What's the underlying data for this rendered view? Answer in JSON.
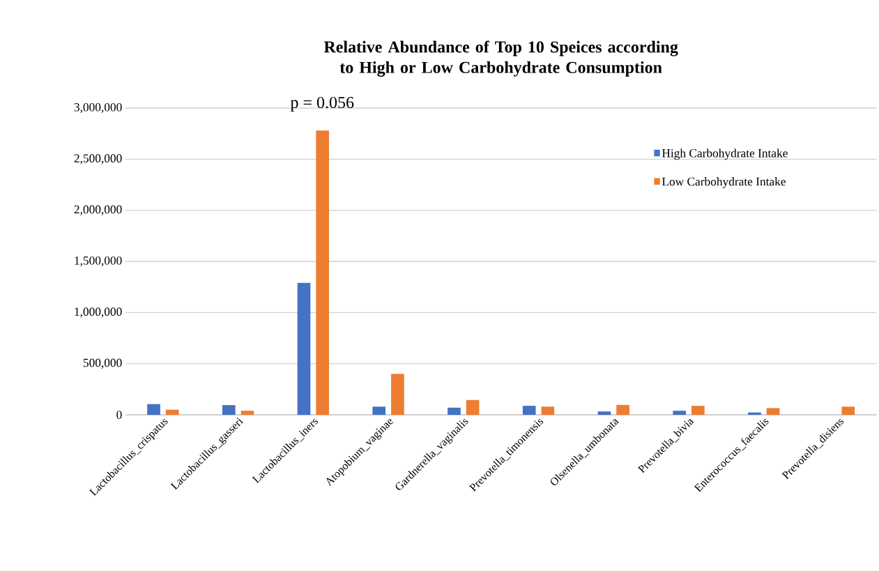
{
  "chart_data": {
    "type": "bar",
    "title": "Relative Abundance of Top 10 Speices according to High or Low Carbohydrate Consumption",
    "categories": [
      "Lactobacillus_crispatus",
      "Lactobacillus_gasseri",
      "Lactobacillus_iners",
      "Atopobium_vaginae",
      "Gardnerella_vaginalis",
      "Prevotella_timonensis",
      "Olsenella_umbonata",
      "Prevotella_bivia",
      "Enterococcus_faecalis",
      "Prevotella_disiens"
    ],
    "series": [
      {
        "name": "High Carbohydrate Intake",
        "color": "#4472c4",
        "values": [
          105000,
          95000,
          1290000,
          80000,
          70000,
          88000,
          33000,
          40000,
          23000,
          null
        ]
      },
      {
        "name": "Low Carbohydrate Intake",
        "color": "#ed7d31",
        "values": [
          50000,
          40000,
          2780000,
          400000,
          145000,
          80000,
          97000,
          88000,
          66000,
          80000
        ]
      }
    ],
    "ylim": [
      0,
      3000000
    ],
    "yticks": [
      {
        "value": 0,
        "label": "0"
      },
      {
        "value": 500000,
        "label": "500,000"
      },
      {
        "value": 1000000,
        "label": "1,000,000"
      },
      {
        "value": 1500000,
        "label": "1,500,000"
      },
      {
        "value": 2000000,
        "label": "2,000,000"
      },
      {
        "value": 2500000,
        "label": "2,500,000"
      },
      {
        "value": 3000000,
        "label": "3,000,000"
      }
    ],
    "annotations": [
      "p = 0.056"
    ],
    "grid": "y",
    "legend": "top right"
  }
}
